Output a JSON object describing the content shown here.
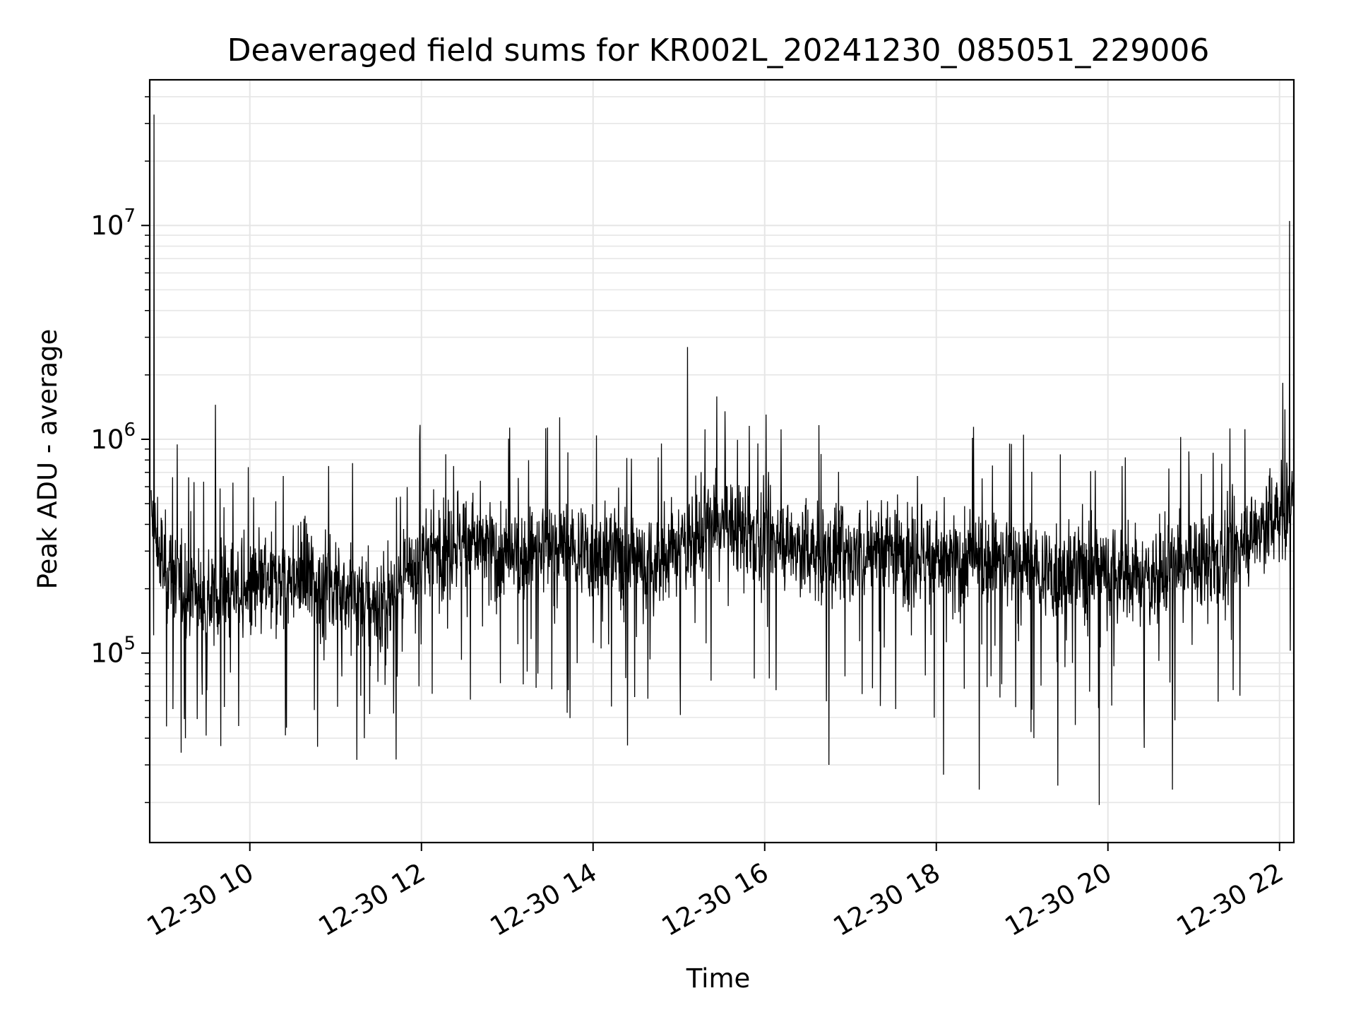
{
  "chart_data": {
    "type": "line",
    "title": "Deaveraged field sums for KR002L_20241230_085051_229006",
    "xlabel": "Time",
    "ylabel": "Peak ADU - average",
    "x_range": [
      "2024-12-30 08:50",
      "2024-12-30 22:10"
    ],
    "y_scale": "log",
    "ylim": [
      13000,
      48000000
    ],
    "grid": "on (major and minor)",
    "legend": "none",
    "x_ticks": [
      "12-30 10",
      "12-30 12",
      "12-30 14",
      "12-30 16",
      "12-30 18",
      "12-30 20",
      "12-30 22"
    ],
    "y_ticks": [
      {
        "value": 100000,
        "base": "10",
        "exp": "5"
      },
      {
        "value": 1000000,
        "base": "10",
        "exp": "6"
      },
      {
        "value": 10000000,
        "base": "10",
        "exp": "7"
      }
    ],
    "line_color": "#000000",
    "series": [
      {
        "x": [
          "08:51",
          "09:00",
          "09:15",
          "09:30",
          "09:45",
          "10:00",
          "10:15",
          "10:30",
          "10:45",
          "11:00",
          "11:15",
          "11:30",
          "11:45",
          "12:00",
          "12:15",
          "12:30",
          "12:45",
          "13:00",
          "13:15",
          "13:30",
          "13:45",
          "14:00",
          "14:15",
          "14:30",
          "14:45",
          "15:00",
          "15:15",
          "15:30",
          "15:45",
          "16:00",
          "16:15",
          "16:30",
          "16:45",
          "17:00",
          "17:15",
          "17:30",
          "17:45",
          "18:00",
          "18:15",
          "18:30",
          "18:45",
          "19:00",
          "19:15",
          "19:30",
          "19:45",
          "20:00",
          "20:15",
          "20:30",
          "20:45",
          "21:00",
          "21:15",
          "21:30",
          "21:45",
          "22:00",
          "22:10"
        ],
        "y": [
          400000,
          250000,
          200000,
          180000,
          200000,
          190000,
          210000,
          230000,
          220000,
          210000,
          190000,
          160000,
          200000,
          280000,
          320000,
          340000,
          310000,
          270000,
          290000,
          320000,
          300000,
          290000,
          300000,
          280000,
          250000,
          320000,
          370000,
          400000,
          380000,
          350000,
          330000,
          300000,
          290000,
          290000,
          300000,
          310000,
          300000,
          270000,
          260000,
          280000,
          270000,
          260000,
          230000,
          240000,
          250000,
          250000,
          220000,
          230000,
          250000,
          260000,
          280000,
          310000,
          380000,
          450000,
          520000
        ]
      }
    ],
    "spikes": [
      {
        "x": "08:53",
        "y": 33000000
      },
      {
        "x": "09:36",
        "y": 1450000
      },
      {
        "x": "15:06",
        "y": 2700000
      },
      {
        "x": "22:07",
        "y": 10500000
      }
    ],
    "dips": [
      {
        "x": "09:15",
        "y": 40000
      },
      {
        "x": "11:20",
        "y": 40000
      },
      {
        "x": "14:24",
        "y": 37000
      },
      {
        "x": "16:45",
        "y": 30000
      },
      {
        "x": "18:05",
        "y": 27000
      },
      {
        "x": "18:30",
        "y": 23000
      },
      {
        "x": "19:25",
        "y": 24000
      },
      {
        "x": "19:54",
        "y": 19500
      },
      {
        "x": "20:45",
        "y": 23000
      }
    ]
  }
}
